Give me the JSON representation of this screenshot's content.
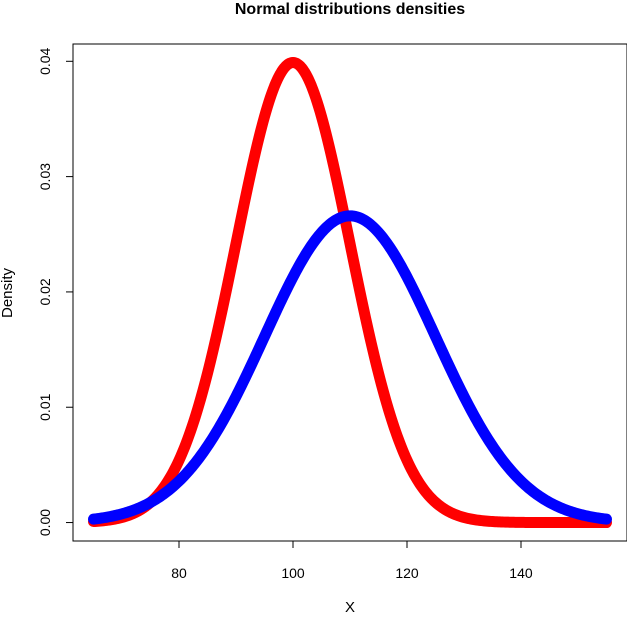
{
  "chart_data": {
    "type": "line",
    "title": "Normal distributions densities",
    "xlabel": "X",
    "ylabel": "Density",
    "xlim": [
      61.4,
      158.6
    ],
    "ylim": [
      -0.0016,
      0.0415
    ],
    "x_ticks": [
      80,
      100,
      120,
      140
    ],
    "x_tick_labels": [
      "80",
      "100",
      "120",
      "140"
    ],
    "y_ticks": [
      0.0,
      0.01,
      0.02,
      0.03,
      0.04
    ],
    "y_tick_labels": [
      "0.00",
      "0.01",
      "0.02",
      "0.03",
      "0.04"
    ],
    "x_range": [
      65,
      155
    ],
    "grid": false,
    "series": [
      {
        "color": "#ff0000",
        "distribution": "normal",
        "mean": 100,
        "sd": 10,
        "peak_density": 0.0399
      },
      {
        "color": "#0000ff",
        "distribution": "normal",
        "mean": 110,
        "sd": 15,
        "peak_density": 0.0266
      }
    ]
  }
}
